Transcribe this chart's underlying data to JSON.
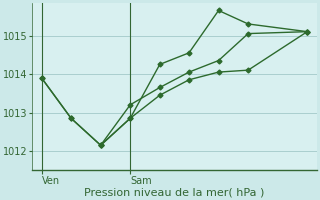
{
  "background_color": "#cce9e9",
  "plot_bg_color": "#d8f0f0",
  "line_color": "#2d6a2d",
  "grid_color": "#aacece",
  "spine_color": "#336633",
  "xlabel": "Pression niveau de la mer( hPa )",
  "xlabel_fontsize": 8,
  "tick_fontsize": 7,
  "ylim": [
    1011.5,
    1015.85
  ],
  "yticks": [
    1012,
    1013,
    1014,
    1015
  ],
  "xlim": [
    -0.3,
    8.3
  ],
  "ven_x": 0.0,
  "sam_x": 2.67,
  "lines": [
    {
      "x": [
        0.0,
        0.89,
        1.78,
        2.67,
        3.56,
        4.44,
        5.33,
        6.22,
        8.0
      ],
      "y": [
        1013.9,
        1012.85,
        1012.15,
        1012.85,
        1014.25,
        1014.55,
        1015.65,
        1015.3,
        1015.1
      ]
    },
    {
      "x": [
        0.0,
        0.89,
        1.78,
        2.67,
        3.56,
        4.44,
        5.33,
        6.22,
        8.0
      ],
      "y": [
        1013.9,
        1012.85,
        1012.15,
        1012.85,
        1013.45,
        1013.85,
        1014.05,
        1014.1,
        1015.1
      ]
    },
    {
      "x": [
        1.78,
        2.67,
        3.56,
        4.44,
        5.33,
        6.22,
        8.0
      ],
      "y": [
        1012.15,
        1013.2,
        1013.65,
        1014.05,
        1014.35,
        1015.05,
        1015.1
      ]
    }
  ],
  "marker": "D",
  "marker_size": 2.5,
  "linewidth": 1.0
}
